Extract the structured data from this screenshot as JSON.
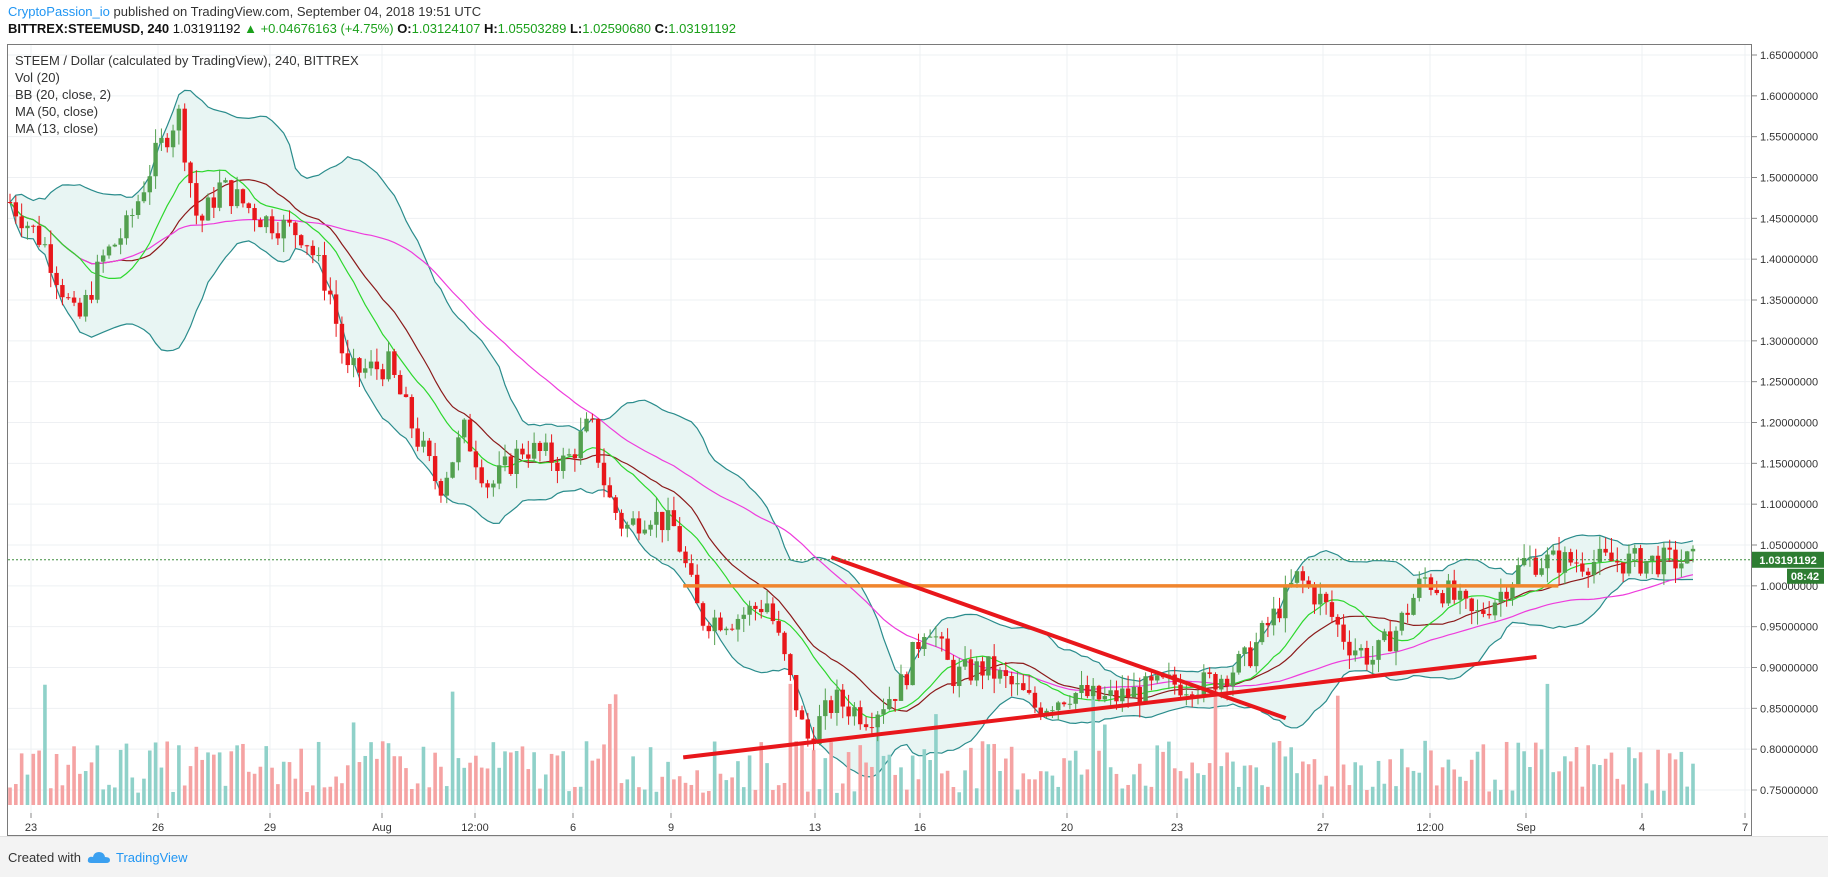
{
  "header": {
    "author": "CryptoPassion_io",
    "published": "published on TradingView.com, September 04, 2018 19:51 UTC",
    "symbol": "BITTREX:STEEMUSD, 240",
    "last": "1.03191192",
    "change": "+0.04676163 (+4.75%)",
    "o_label": "O:",
    "o_value": "1.03124107",
    "h_label": "H:",
    "h_value": "1.05503289",
    "l_label": "L:",
    "l_value": "1.02590680",
    "c_label": "C:",
    "c_value": "1.03191192"
  },
  "legend": {
    "title": "STEEM / Dollar (calculated by TradingView), 240, BITTREX",
    "studies": [
      "Vol (20)",
      "BB (20, close, 2)",
      "MA (50, close)",
      "MA (13, close)"
    ]
  },
  "footer": {
    "created": "Created with",
    "brand": "TradingView"
  },
  "chart_data": {
    "type": "candlestick",
    "y_scale": {
      "min": 0.75,
      "max": 1.65
    },
    "y_ticks": [
      1.65,
      1.6,
      1.55,
      1.5,
      1.45,
      1.4,
      1.35,
      1.3,
      1.25,
      1.2,
      1.15,
      1.1,
      1.05,
      1.0,
      0.95,
      0.9,
      0.85,
      0.8,
      0.75
    ],
    "y_tick_labels": [
      "1.65000000",
      "1.60000000",
      "1.55000000",
      "1.50000000",
      "1.45000000",
      "1.40000000",
      "1.35000000",
      "1.30000000",
      "1.25000000",
      "1.20000000",
      "1.15000000",
      "1.10000000",
      "1.05000000",
      "1.00000000",
      "0.95000000",
      "0.90000000",
      "0.85000000",
      "0.80000000",
      "0.75000000"
    ],
    "x_ticks": [
      "23",
      "26",
      "29",
      "Aug",
      "12:00",
      "6",
      "9",
      "13",
      "16",
      "20",
      "23",
      "27",
      "12:00",
      "Sep",
      "4",
      "7"
    ],
    "price_label": "1.03191192",
    "countdown_label": "08:42",
    "current_price": 1.03191192,
    "horizontal_line": {
      "price": 1.0,
      "color": "#f0852d"
    },
    "trendlines": [
      {
        "color": "#e8171b",
        "from": [
          0.4,
          0.79
        ],
        "to": [
          0.907,
          0.913
        ]
      },
      {
        "color": "#e8171b",
        "from": [
          0.488,
          1.035
        ],
        "to": [
          0.758,
          0.838
        ]
      }
    ],
    "colors": {
      "up": "#53a04f",
      "down": "#e8171b",
      "vol_up": "#8fd1c9",
      "vol_down": "#f5a3a3",
      "bb": "#2a8c8c",
      "bb_fill": "#e8f5f3",
      "ma50": "#ee3cdc",
      "ma13": "#2dd82d",
      "basis": "#8b1a1a"
    },
    "close_anchors": [
      [
        0,
        1.47
      ],
      [
        0.02,
        1.42
      ],
      [
        0.04,
        1.32
      ],
      [
        0.055,
        1.4
      ],
      [
        0.07,
        1.44
      ],
      [
        0.085,
        1.52
      ],
      [
        0.1,
        1.58
      ],
      [
        0.112,
        1.44
      ],
      [
        0.125,
        1.49
      ],
      [
        0.15,
        1.45
      ],
      [
        0.175,
        1.43
      ],
      [
        0.19,
        1.36
      ],
      [
        0.2,
        1.26
      ],
      [
        0.225,
        1.27
      ],
      [
        0.24,
        1.19
      ],
      [
        0.255,
        1.12
      ],
      [
        0.27,
        1.19
      ],
      [
        0.285,
        1.12
      ],
      [
        0.305,
        1.17
      ],
      [
        0.33,
        1.15
      ],
      [
        0.345,
        1.2
      ],
      [
        0.355,
        1.11
      ],
      [
        0.365,
        1.07
      ],
      [
        0.38,
        1.09
      ],
      [
        0.395,
        1.07
      ],
      [
        0.41,
        0.96
      ],
      [
        0.43,
        0.96
      ],
      [
        0.45,
        0.98
      ],
      [
        0.46,
        0.91
      ],
      [
        0.473,
        0.81
      ],
      [
        0.49,
        0.86
      ],
      [
        0.51,
        0.84
      ],
      [
        0.53,
        0.88
      ],
      [
        0.545,
        0.96
      ],
      [
        0.56,
        0.89
      ],
      [
        0.58,
        0.9
      ],
      [
        0.6,
        0.87
      ],
      [
        0.61,
        0.85
      ],
      [
        0.63,
        0.87
      ],
      [
        0.65,
        0.86
      ],
      [
        0.67,
        0.87
      ],
      [
        0.69,
        0.88
      ],
      [
        0.71,
        0.88
      ],
      [
        0.72,
        0.89
      ],
      [
        0.735,
        0.91
      ],
      [
        0.75,
        0.96
      ],
      [
        0.765,
        1.01
      ],
      [
        0.78,
        0.98
      ],
      [
        0.795,
        0.93
      ],
      [
        0.81,
        0.91
      ],
      [
        0.825,
        0.95
      ],
      [
        0.84,
        1.01
      ],
      [
        0.855,
        0.99
      ],
      [
        0.87,
        0.96
      ],
      [
        0.885,
        0.99
      ],
      [
        0.9,
        1.03
      ]
    ]
  }
}
